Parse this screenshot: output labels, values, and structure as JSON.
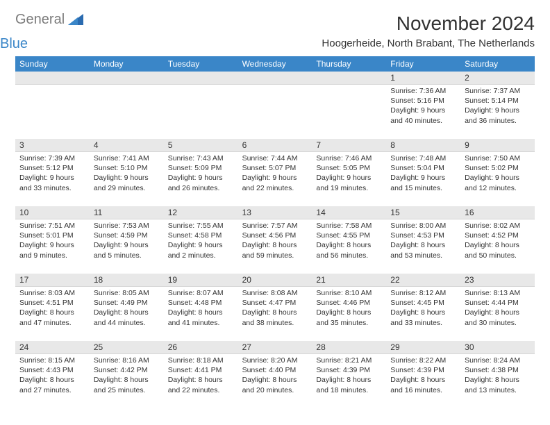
{
  "brand": {
    "name_part1": "General",
    "name_part2": "Blue"
  },
  "title": "November 2024",
  "location": "Hoogerheide, North Brabant, The Netherlands",
  "colors": {
    "header_bg": "#3a86c8",
    "header_text": "#ffffff",
    "daynum_bg": "#e8e8e8",
    "page_bg": "#ffffff",
    "text": "#333333",
    "logo_gray": "#7b7b7b",
    "logo_blue": "#3a86c8"
  },
  "day_names": [
    "Sunday",
    "Monday",
    "Tuesday",
    "Wednesday",
    "Thursday",
    "Friday",
    "Saturday"
  ],
  "weeks": [
    [
      {
        "n": "",
        "sr": "",
        "ss": "",
        "dl": ""
      },
      {
        "n": "",
        "sr": "",
        "ss": "",
        "dl": ""
      },
      {
        "n": "",
        "sr": "",
        "ss": "",
        "dl": ""
      },
      {
        "n": "",
        "sr": "",
        "ss": "",
        "dl": ""
      },
      {
        "n": "",
        "sr": "",
        "ss": "",
        "dl": ""
      },
      {
        "n": "1",
        "sr": "Sunrise: 7:36 AM",
        "ss": "Sunset: 5:16 PM",
        "dl": "Daylight: 9 hours and 40 minutes."
      },
      {
        "n": "2",
        "sr": "Sunrise: 7:37 AM",
        "ss": "Sunset: 5:14 PM",
        "dl": "Daylight: 9 hours and 36 minutes."
      }
    ],
    [
      {
        "n": "3",
        "sr": "Sunrise: 7:39 AM",
        "ss": "Sunset: 5:12 PM",
        "dl": "Daylight: 9 hours and 33 minutes."
      },
      {
        "n": "4",
        "sr": "Sunrise: 7:41 AM",
        "ss": "Sunset: 5:10 PM",
        "dl": "Daylight: 9 hours and 29 minutes."
      },
      {
        "n": "5",
        "sr": "Sunrise: 7:43 AM",
        "ss": "Sunset: 5:09 PM",
        "dl": "Daylight: 9 hours and 26 minutes."
      },
      {
        "n": "6",
        "sr": "Sunrise: 7:44 AM",
        "ss": "Sunset: 5:07 PM",
        "dl": "Daylight: 9 hours and 22 minutes."
      },
      {
        "n": "7",
        "sr": "Sunrise: 7:46 AM",
        "ss": "Sunset: 5:05 PM",
        "dl": "Daylight: 9 hours and 19 minutes."
      },
      {
        "n": "8",
        "sr": "Sunrise: 7:48 AM",
        "ss": "Sunset: 5:04 PM",
        "dl": "Daylight: 9 hours and 15 minutes."
      },
      {
        "n": "9",
        "sr": "Sunrise: 7:50 AM",
        "ss": "Sunset: 5:02 PM",
        "dl": "Daylight: 9 hours and 12 minutes."
      }
    ],
    [
      {
        "n": "10",
        "sr": "Sunrise: 7:51 AM",
        "ss": "Sunset: 5:01 PM",
        "dl": "Daylight: 9 hours and 9 minutes."
      },
      {
        "n": "11",
        "sr": "Sunrise: 7:53 AM",
        "ss": "Sunset: 4:59 PM",
        "dl": "Daylight: 9 hours and 5 minutes."
      },
      {
        "n": "12",
        "sr": "Sunrise: 7:55 AM",
        "ss": "Sunset: 4:58 PM",
        "dl": "Daylight: 9 hours and 2 minutes."
      },
      {
        "n": "13",
        "sr": "Sunrise: 7:57 AM",
        "ss": "Sunset: 4:56 PM",
        "dl": "Daylight: 8 hours and 59 minutes."
      },
      {
        "n": "14",
        "sr": "Sunrise: 7:58 AM",
        "ss": "Sunset: 4:55 PM",
        "dl": "Daylight: 8 hours and 56 minutes."
      },
      {
        "n": "15",
        "sr": "Sunrise: 8:00 AM",
        "ss": "Sunset: 4:53 PM",
        "dl": "Daylight: 8 hours and 53 minutes."
      },
      {
        "n": "16",
        "sr": "Sunrise: 8:02 AM",
        "ss": "Sunset: 4:52 PM",
        "dl": "Daylight: 8 hours and 50 minutes."
      }
    ],
    [
      {
        "n": "17",
        "sr": "Sunrise: 8:03 AM",
        "ss": "Sunset: 4:51 PM",
        "dl": "Daylight: 8 hours and 47 minutes."
      },
      {
        "n": "18",
        "sr": "Sunrise: 8:05 AM",
        "ss": "Sunset: 4:49 PM",
        "dl": "Daylight: 8 hours and 44 minutes."
      },
      {
        "n": "19",
        "sr": "Sunrise: 8:07 AM",
        "ss": "Sunset: 4:48 PM",
        "dl": "Daylight: 8 hours and 41 minutes."
      },
      {
        "n": "20",
        "sr": "Sunrise: 8:08 AM",
        "ss": "Sunset: 4:47 PM",
        "dl": "Daylight: 8 hours and 38 minutes."
      },
      {
        "n": "21",
        "sr": "Sunrise: 8:10 AM",
        "ss": "Sunset: 4:46 PM",
        "dl": "Daylight: 8 hours and 35 minutes."
      },
      {
        "n": "22",
        "sr": "Sunrise: 8:12 AM",
        "ss": "Sunset: 4:45 PM",
        "dl": "Daylight: 8 hours and 33 minutes."
      },
      {
        "n": "23",
        "sr": "Sunrise: 8:13 AM",
        "ss": "Sunset: 4:44 PM",
        "dl": "Daylight: 8 hours and 30 minutes."
      }
    ],
    [
      {
        "n": "24",
        "sr": "Sunrise: 8:15 AM",
        "ss": "Sunset: 4:43 PM",
        "dl": "Daylight: 8 hours and 27 minutes."
      },
      {
        "n": "25",
        "sr": "Sunrise: 8:16 AM",
        "ss": "Sunset: 4:42 PM",
        "dl": "Daylight: 8 hours and 25 minutes."
      },
      {
        "n": "26",
        "sr": "Sunrise: 8:18 AM",
        "ss": "Sunset: 4:41 PM",
        "dl": "Daylight: 8 hours and 22 minutes."
      },
      {
        "n": "27",
        "sr": "Sunrise: 8:20 AM",
        "ss": "Sunset: 4:40 PM",
        "dl": "Daylight: 8 hours and 20 minutes."
      },
      {
        "n": "28",
        "sr": "Sunrise: 8:21 AM",
        "ss": "Sunset: 4:39 PM",
        "dl": "Daylight: 8 hours and 18 minutes."
      },
      {
        "n": "29",
        "sr": "Sunrise: 8:22 AM",
        "ss": "Sunset: 4:39 PM",
        "dl": "Daylight: 8 hours and 16 minutes."
      },
      {
        "n": "30",
        "sr": "Sunrise: 8:24 AM",
        "ss": "Sunset: 4:38 PM",
        "dl": "Daylight: 8 hours and 13 minutes."
      }
    ]
  ]
}
